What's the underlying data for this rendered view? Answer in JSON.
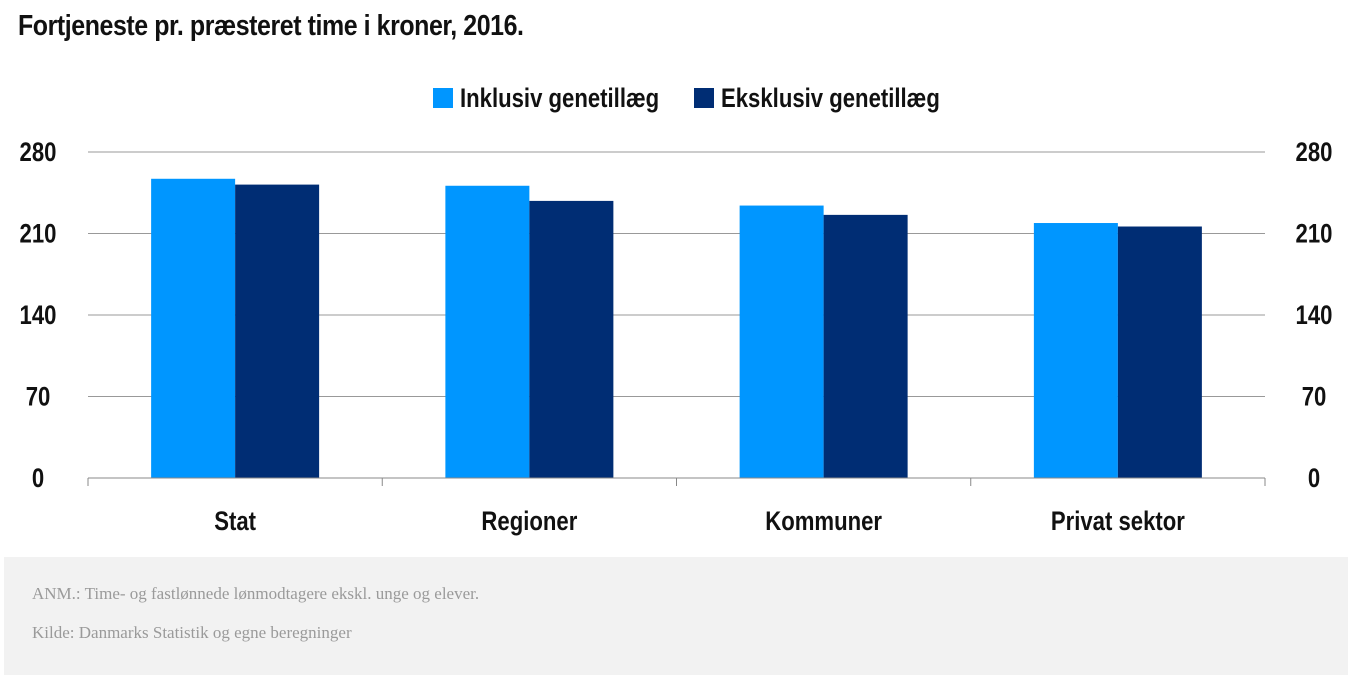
{
  "title": "Fortjeneste pr. præsteret time i kroner, 2016.",
  "notes": {
    "anm": "ANM.: Time- og fastlønnede lønmodtagere ekskl. unge og elever.",
    "source": "Kilde: Danmarks Statistik og egne beregninger"
  },
  "colors": {
    "inklusiv": "#0096ff",
    "eksklusiv": "#002d74",
    "grid": "#999999",
    "axis_text": "#111111"
  },
  "chart_data": {
    "type": "bar",
    "title": "Fortjeneste pr. præsteret time i kroner, 2016.",
    "categories": [
      "Stat",
      "Regioner",
      "Kommuner",
      "Privat sektor"
    ],
    "series": [
      {
        "name": "Inklusiv genetillæg",
        "values": [
          257,
          251,
          234,
          219
        ]
      },
      {
        "name": "Eksklusiv genetillæg",
        "values": [
          252,
          238,
          226,
          216
        ]
      }
    ],
    "yticks": [
      0,
      70,
      140,
      210,
      280
    ],
    "ylim": [
      0,
      280
    ],
    "secondary_axis": true,
    "grid": true,
    "legend_position": "top-center",
    "xlabel": "",
    "ylabel": ""
  }
}
